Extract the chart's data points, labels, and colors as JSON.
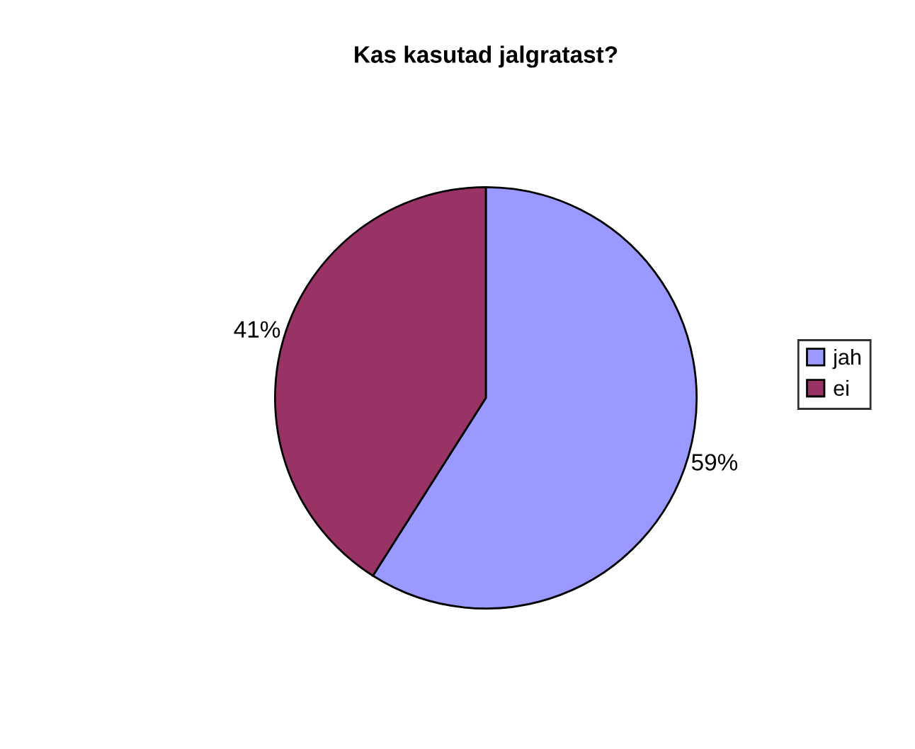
{
  "chart_data": {
    "type": "pie",
    "title": "Kas kasutad jalgratast?",
    "categories": [
      "jah",
      "ei"
    ],
    "values": [
      59,
      41
    ],
    "colors": [
      "#9999ff",
      "#993366"
    ],
    "value_labels": [
      "59%",
      "41%"
    ],
    "legend": "right"
  }
}
